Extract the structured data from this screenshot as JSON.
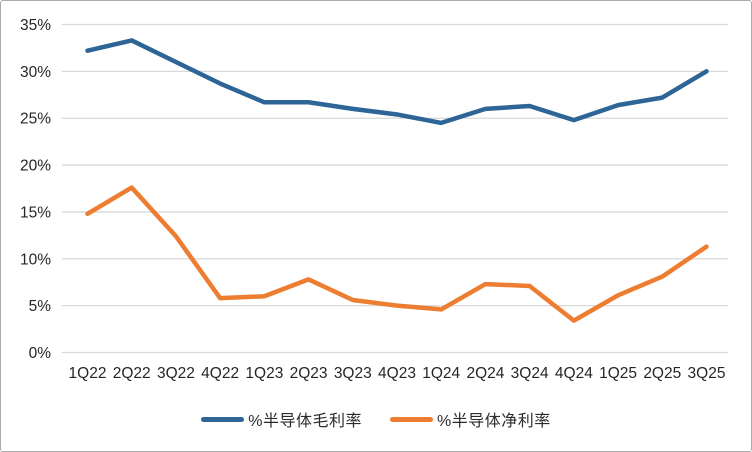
{
  "chart_data": {
    "type": "line",
    "title": "",
    "xlabel": "",
    "ylabel": "",
    "categories": [
      "1Q22",
      "2Q22",
      "3Q22",
      "4Q22",
      "1Q23",
      "2Q23",
      "3Q23",
      "4Q23",
      "1Q24",
      "2Q24",
      "3Q24",
      "4Q24",
      "1Q25",
      "2Q25",
      "3Q25"
    ],
    "series": [
      {
        "name": "%半导体毛利率",
        "color": "#2D6596",
        "values": [
          32.2,
          33.3,
          31.0,
          28.7,
          26.7,
          26.7,
          26.0,
          25.4,
          24.5,
          26.0,
          26.3,
          24.8,
          26.4,
          27.2,
          30.0
        ]
      },
      {
        "name": "%半导体净利率",
        "color": "#ED7D31",
        "values": [
          14.8,
          17.6,
          12.4,
          5.8,
          6.0,
          7.8,
          5.6,
          5.0,
          4.6,
          7.3,
          7.1,
          3.4,
          6.1,
          8.1,
          11.3
        ]
      }
    ],
    "ylim": [
      0,
      35
    ],
    "ytick_step": 5,
    "ytick_labels": [
      "0%",
      "5%",
      "10%",
      "15%",
      "20%",
      "25%",
      "30%",
      "35%"
    ],
    "grid": "horizontal-only",
    "legend_position": "bottom",
    "colors": {
      "gridline": "#D9D9D9",
      "tick_label": "#262626",
      "background": "#FFFFFF",
      "frame_border": "#ABABAB"
    }
  }
}
